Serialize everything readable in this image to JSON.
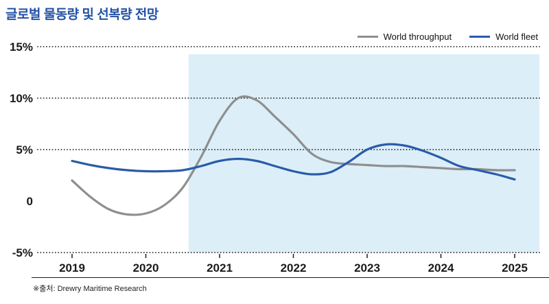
{
  "page": {
    "title": "글로벌 물동량 및 선복량 전망",
    "source_note": "※출처: Drewry Maritime Research",
    "colors": {
      "title": "#2351A5",
      "grid": "#1A1A1A",
      "axis_text": "#1A1A1A",
      "forecast_fill": "#DCEEF8"
    }
  },
  "chart_data": {
    "type": "line",
    "title": "글로벌 물동량 및 선복량 전망",
    "ylim": [
      -5,
      15
    ],
    "x": [
      2019,
      2019.25,
      2019.5,
      2019.75,
      2020,
      2020.25,
      2020.5,
      2020.75,
      2021,
      2021.25,
      2021.5,
      2021.75,
      2022,
      2022.25,
      2022.5,
      2022.75,
      2023,
      2023.25,
      2023.5,
      2023.75,
      2024,
      2024.25,
      2024.5,
      2024.75,
      2025
    ],
    "series": [
      {
        "name": "World throughput",
        "color": "#8E8E8E",
        "values": [
          2.0,
          0.4,
          -0.8,
          -1.3,
          -1.2,
          -0.4,
          1.3,
          4.3,
          7.8,
          10.0,
          9.8,
          8.2,
          6.5,
          4.6,
          3.8,
          3.6,
          3.5,
          3.4,
          3.4,
          3.3,
          3.2,
          3.1,
          3.1,
          3.0,
          3.0
        ]
      },
      {
        "name": "World fleet",
        "color": "#2A5BA8",
        "values": [
          3.9,
          3.5,
          3.2,
          3.0,
          2.9,
          2.9,
          3.0,
          3.4,
          3.9,
          4.1,
          3.9,
          3.4,
          2.9,
          2.6,
          2.8,
          3.8,
          5.0,
          5.5,
          5.4,
          4.9,
          4.2,
          3.4,
          3.0,
          2.6,
          2.1
        ]
      }
    ],
    "yticks": [
      {
        "value": 15,
        "label": "15%",
        "gridline": true
      },
      {
        "value": 10,
        "label": "10%",
        "gridline": true
      },
      {
        "value": 5,
        "label": "5%",
        "gridline": true
      },
      {
        "value": 0,
        "label": "0",
        "gridline": false
      },
      {
        "value": -5,
        "label": "-5%",
        "gridline": true
      }
    ],
    "xticks": [
      {
        "value": 2019,
        "label": "2019"
      },
      {
        "value": 2020,
        "label": "2020"
      },
      {
        "value": 2021,
        "label": "2021"
      },
      {
        "value": 2022,
        "label": "2022"
      },
      {
        "value": 2023,
        "label": "2023"
      },
      {
        "value": 2024,
        "label": "2024"
      },
      {
        "value": 2025,
        "label": "2025"
      }
    ],
    "grid": "dotted-horizontal",
    "legend": {
      "position": "top-right",
      "entries": [
        "World throughput",
        "World fleet"
      ]
    },
    "forecast_region": {
      "start_x": 2020.58,
      "fill": "#DCEEF8"
    }
  }
}
